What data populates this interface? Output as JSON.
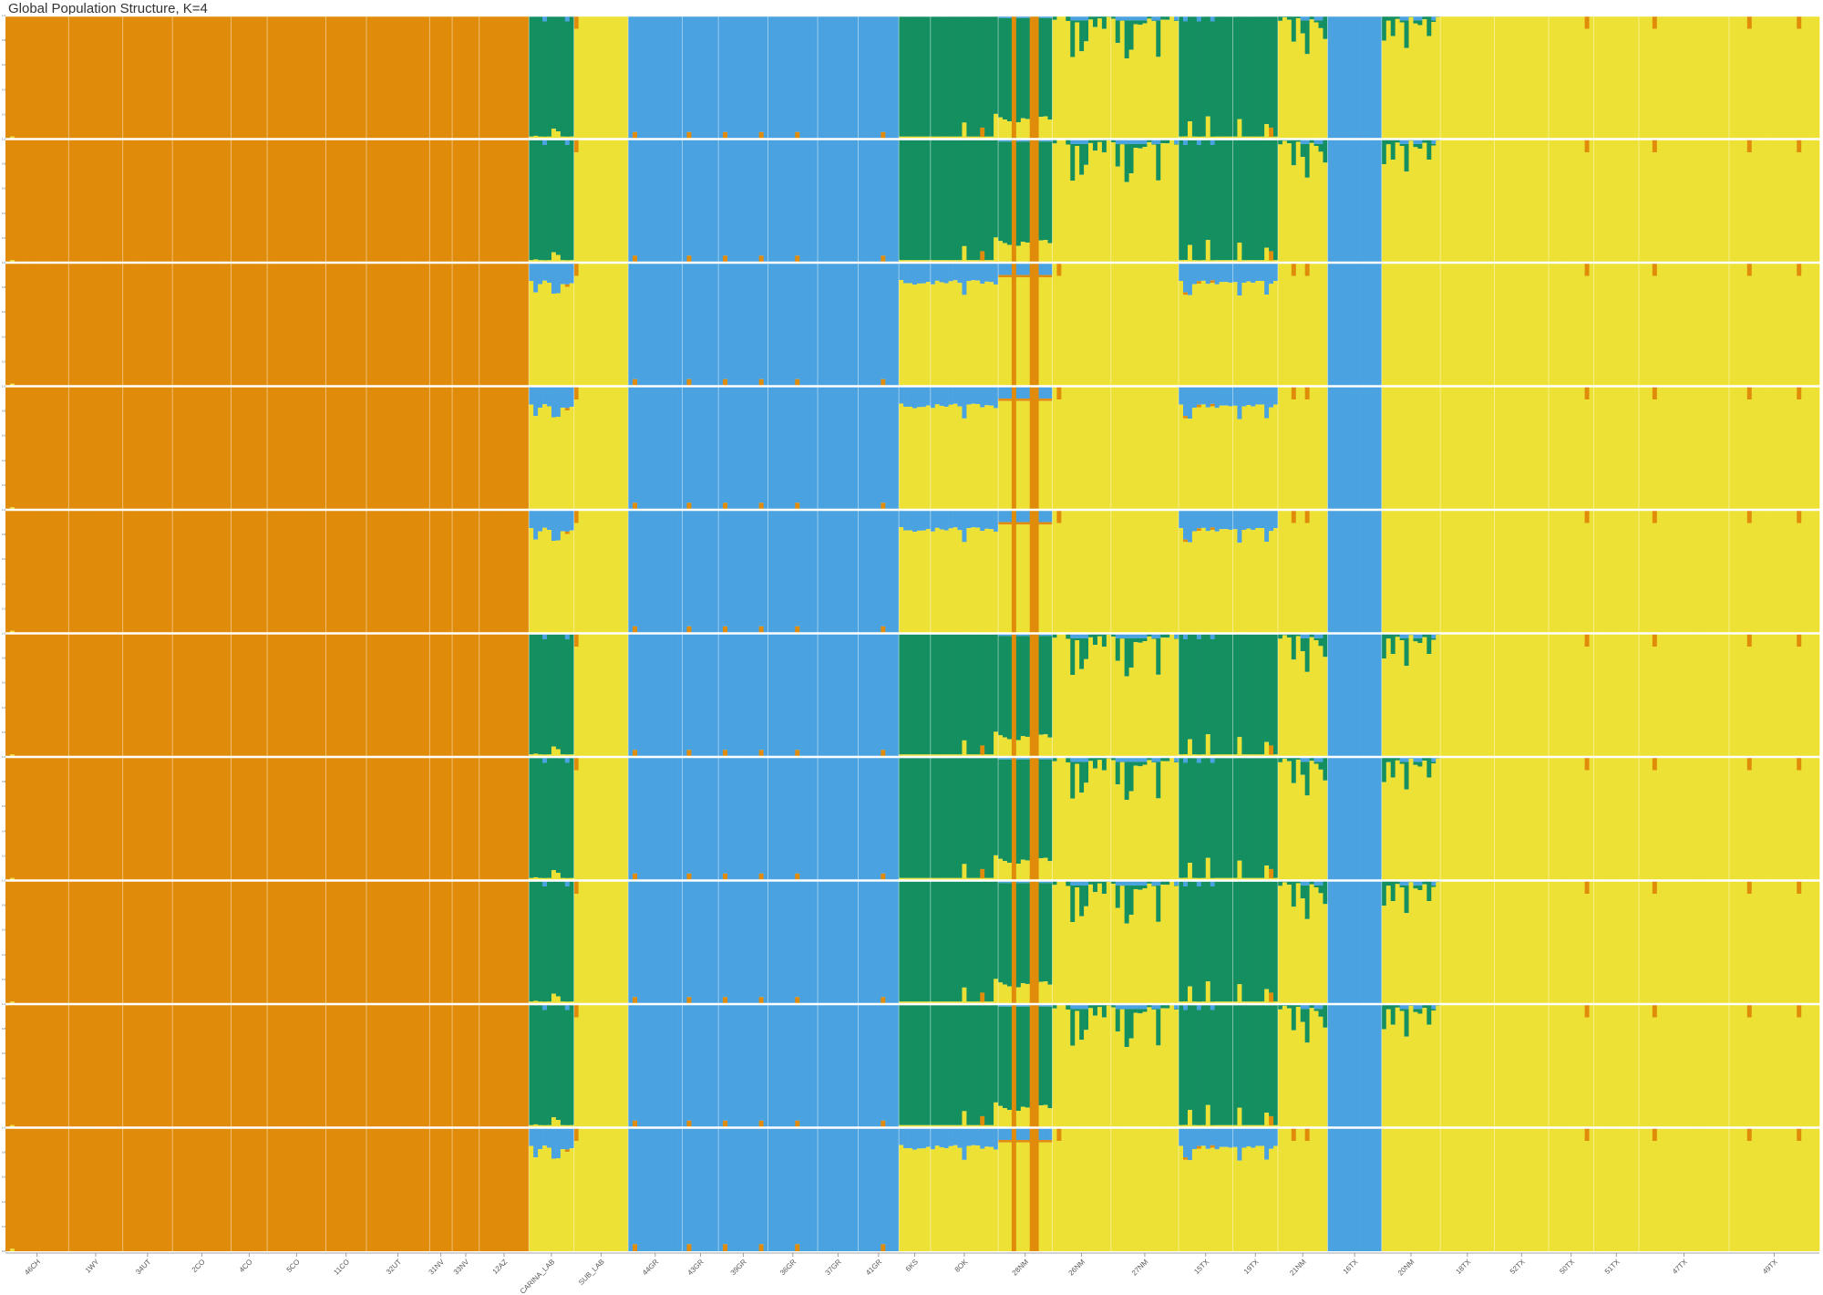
{
  "chart_data": {
    "type": "bar",
    "stacked": true,
    "title": "Global Population Structure, K=4",
    "xlabel": "",
    "ylabel": "",
    "ylim": [
      0,
      1
    ],
    "legend": "none",
    "panels": 10,
    "series_colors": [
      "#e08c0a",
      "#148f60",
      "#4aa3e0",
      "#ede135"
    ],
    "panel_pattern": [
      "A",
      "A",
      "B",
      "B",
      "B",
      "A",
      "A",
      "A",
      "A",
      "B"
    ],
    "populations": [
      {
        "label": "46CH",
        "n": 14,
        "A": "O",
        "B": "O"
      },
      {
        "label": "1WY",
        "n": 12,
        "A": "O",
        "B": "O"
      },
      {
        "label": "34UT",
        "n": 11,
        "A": "O",
        "B": "O"
      },
      {
        "label": "2CO",
        "n": 13,
        "A": "O",
        "B": "O"
      },
      {
        "label": "4CO",
        "n": 8,
        "A": "O",
        "B": "O"
      },
      {
        "label": "5CO",
        "n": 13,
        "A": "O",
        "B": "O"
      },
      {
        "label": "11CO",
        "n": 9,
        "A": "O",
        "B": "O"
      },
      {
        "label": "32UT",
        "n": 14,
        "A": "O",
        "B": "O"
      },
      {
        "label": "31NV",
        "n": 5,
        "A": "O",
        "B": "O"
      },
      {
        "label": "33NV",
        "n": 6,
        "A": "O",
        "B": "O"
      },
      {
        "label": "12AZ",
        "n": 11,
        "A": "O",
        "B": "O"
      },
      {
        "label": "CARINA_LAB",
        "n": 10,
        "A": "G",
        "B": "YB"
      },
      {
        "label": "SUB_LAB",
        "n": 12,
        "A": "Y",
        "B": "Y"
      },
      {
        "label": "44GR",
        "n": 12,
        "A": "B",
        "B": "B"
      },
      {
        "label": "43GR",
        "n": 8,
        "A": "B",
        "B": "B"
      },
      {
        "label": "39GR",
        "n": 11,
        "A": "B",
        "B": "B"
      },
      {
        "label": "36GR",
        "n": 11,
        "A": "B",
        "B": "B"
      },
      {
        "label": "37GR",
        "n": 9,
        "A": "B",
        "B": "B"
      },
      {
        "label": "41GR",
        "n": 9,
        "A": "B",
        "B": "B"
      },
      {
        "label": "6KS",
        "n": 7,
        "A": "G",
        "B": "YB"
      },
      {
        "label": "8OK",
        "n": 15,
        "A": "G",
        "B": "YB"
      },
      {
        "label": "28NM",
        "n": 12,
        "A": "GM",
        "B": "YM"
      },
      {
        "label": "26NM",
        "n": 13,
        "A": "YG",
        "B": "Y"
      },
      {
        "label": "27NM",
        "n": 15,
        "A": "YG",
        "B": "Y"
      },
      {
        "label": "15TX",
        "n": 12,
        "A": "G",
        "B": "YB"
      },
      {
        "label": "19TX",
        "n": 10,
        "A": "G",
        "B": "YB"
      },
      {
        "label": "21NM",
        "n": 11,
        "A": "YG",
        "B": "Y"
      },
      {
        "label": "16TX",
        "n": 12,
        "A": "B",
        "B": "B"
      },
      {
        "label": "20NM",
        "n": 13,
        "A": "YG",
        "B": "Y"
      },
      {
        "label": "18TX",
        "n": 12,
        "A": "Y",
        "B": "Y"
      },
      {
        "label": "52TX",
        "n": 12,
        "A": "Y",
        "B": "Y"
      },
      {
        "label": "50TX",
        "n": 10,
        "A": "Y",
        "B": "Y"
      },
      {
        "label": "51TX",
        "n": 10,
        "A": "Y",
        "B": "Y"
      },
      {
        "label": "47TX",
        "n": 20,
        "A": "Y",
        "B": "Y"
      },
      {
        "label": "49TX",
        "n": 20,
        "A": "Y",
        "B": "Y"
      }
    ]
  }
}
